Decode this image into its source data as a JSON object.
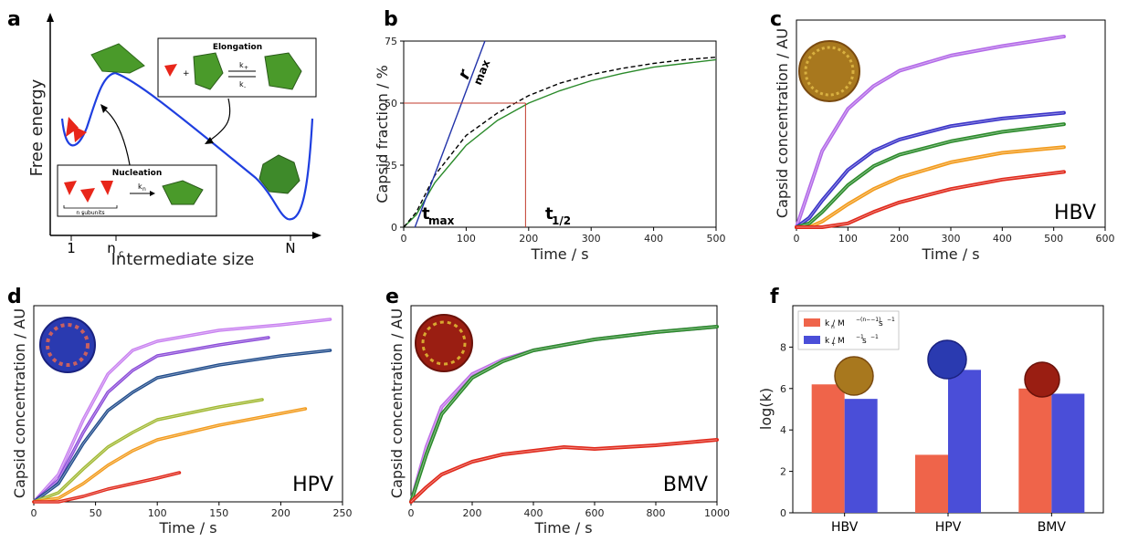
{
  "panels": {
    "a": {
      "letter": "a",
      "ylabel": "Free energy",
      "xlabel": "Intermediate size",
      "xticks": [
        "1",
        "n",
        "N"
      ],
      "nc_sub": "c",
      "elongation": {
        "title": "Elongation",
        "kplus": "k",
        "kplus_sub": "+",
        "kminus": "k",
        "kminus_sub": "-",
        "plus": "+"
      },
      "nucleation": {
        "title": "Nucleation",
        "kn": "k",
        "kn_sub": "n",
        "subunits": "n  subunits",
        "subunits_sub": "c"
      },
      "colors": {
        "curve": "#1f3fe0",
        "subunit": "#e8261a",
        "capsid": "#4a9a2a"
      }
    },
    "b": {
      "letter": "b",
      "ylabel": "Capsid fraction / %",
      "xlabel": "Time / s",
      "xticks": [
        "0",
        "100",
        "200",
        "300",
        "400",
        "500"
      ],
      "yticks": [
        "0",
        "25",
        "50",
        "75"
      ],
      "rmax": "r",
      "rmax_sub": "max",
      "tmax": "t",
      "tmax_sub": "max",
      "thalf": "t",
      "thalf_sub": "1/2"
    },
    "c": {
      "letter": "c",
      "ylabel": "Capsid concentration / AU",
      "xlabel": "Time / s",
      "xticks": [
        "0",
        "100",
        "200",
        "300",
        "400",
        "500",
        "600"
      ],
      "virus": "HBV"
    },
    "d": {
      "letter": "d",
      "ylabel": "Capsid concentration / AU",
      "xlabel": "Time / s",
      "xticks": [
        "0",
        "50",
        "100",
        "150",
        "200",
        "250"
      ],
      "virus": "HPV"
    },
    "e": {
      "letter": "e",
      "ylabel": "Capsid concentration / AU",
      "xlabel": "Time / s",
      "xticks": [
        "0",
        "200",
        "400",
        "600",
        "800",
        "1000"
      ],
      "virus": "BMV"
    },
    "f": {
      "letter": "f",
      "ylabel": "log(k)",
      "yticks": [
        "0",
        "2",
        "4",
        "6",
        "8"
      ],
      "legend_kn": "k  / M",
      "legend_kn_sub": "n",
      "legend_kn_sup": "−(n−−1)",
      "legend_kn_s": " s",
      "legend_kplus": "k  / M",
      "legend_kplus_sub": "+",
      "legend_kplus_sup": "−1",
      "legend_kplus_s": " s",
      "legend_s_sup": "−1"
    }
  },
  "chart_data": [
    {
      "panel": "b",
      "type": "line",
      "xlabel": "Time / s",
      "ylabel": "Capsid fraction / %",
      "xlim": [
        0,
        500
      ],
      "ylim": [
        0,
        75
      ],
      "series": [
        {
          "color": "#2a8a2a",
          "style": "solid",
          "x": [
            0,
            20,
            50,
            100,
            150,
            200,
            250,
            300,
            350,
            400,
            450,
            500
          ],
          "y": [
            0,
            5,
            18,
            33,
            43,
            50,
            55,
            59,
            62,
            64.5,
            66,
            67.5
          ]
        },
        {
          "color": "#000000",
          "style": "dashed",
          "x": [
            0,
            20,
            50,
            100,
            150,
            200,
            250,
            300,
            350,
            400,
            450,
            500
          ],
          "y": [
            0,
            6,
            21,
            37,
            46,
            53,
            58,
            61.5,
            64,
            66,
            67.5,
            68.5
          ]
        },
        {
          "color": "#2233aa",
          "style": "solid",
          "x": [
            18,
            130
          ],
          "y": [
            0,
            75
          ]
        }
      ],
      "annotations": {
        "half_time": 195,
        "half_value": 50,
        "t_max": 22
      }
    },
    {
      "panel": "c",
      "type": "line",
      "xlabel": "Time / s",
      "ylabel": "Capsid concentration / AU",
      "xlim": [
        0,
        600
      ],
      "series": [
        {
          "color": "#b36ae8",
          "x": [
            0,
            25,
            50,
            100,
            150,
            200,
            300,
            400,
            520
          ],
          "y": [
            0,
            0.2,
            0.4,
            0.62,
            0.74,
            0.82,
            0.9,
            0.95,
            1.0
          ]
        },
        {
          "color": "#3a33c8",
          "x": [
            0,
            25,
            50,
            100,
            150,
            200,
            300,
            400,
            520
          ],
          "y": [
            0,
            0.05,
            0.14,
            0.3,
            0.4,
            0.46,
            0.53,
            0.57,
            0.6
          ]
        },
        {
          "color": "#2a8a2a",
          "x": [
            0,
            25,
            50,
            100,
            150,
            200,
            300,
            400,
            520
          ],
          "y": [
            0,
            0.02,
            0.08,
            0.22,
            0.32,
            0.38,
            0.45,
            0.5,
            0.54
          ]
        },
        {
          "color": "#f29a1a",
          "x": [
            0,
            25,
            50,
            100,
            150,
            200,
            300,
            400,
            520
          ],
          "y": [
            0,
            0.0,
            0.03,
            0.12,
            0.2,
            0.26,
            0.34,
            0.39,
            0.42
          ]
        },
        {
          "color": "#e0281a",
          "x": [
            0,
            50,
            100,
            150,
            200,
            300,
            400,
            520
          ],
          "y": [
            0,
            0,
            0.02,
            0.08,
            0.13,
            0.2,
            0.25,
            0.29
          ]
        }
      ]
    },
    {
      "panel": "d",
      "type": "line",
      "xlabel": "Time / s",
      "ylabel": "Capsid concentration / AU",
      "xlim": [
        0,
        250
      ],
      "series": [
        {
          "color": "#c880f0",
          "x": [
            0,
            20,
            40,
            60,
            80,
            100,
            150,
            200,
            240
          ],
          "y": [
            0,
            0.15,
            0.45,
            0.7,
            0.83,
            0.88,
            0.94,
            0.97,
            1.0
          ]
        },
        {
          "color": "#8a4ad8",
          "x": [
            0,
            20,
            40,
            60,
            80,
            100,
            150,
            190
          ],
          "y": [
            0,
            0.12,
            0.38,
            0.6,
            0.72,
            0.8,
            0.86,
            0.9
          ]
        },
        {
          "color": "#1e4a8a",
          "x": [
            0,
            20,
            40,
            60,
            80,
            100,
            150,
            200,
            240
          ],
          "y": [
            0,
            0.1,
            0.32,
            0.5,
            0.6,
            0.68,
            0.75,
            0.8,
            0.83
          ]
        },
        {
          "color": "#a0b830",
          "x": [
            0,
            20,
            40,
            60,
            80,
            100,
            150,
            185
          ],
          "y": [
            0,
            0.05,
            0.18,
            0.3,
            0.38,
            0.45,
            0.52,
            0.56
          ]
        },
        {
          "color": "#f29a1a",
          "x": [
            0,
            20,
            40,
            60,
            80,
            100,
            150,
            220
          ],
          "y": [
            0,
            0.02,
            0.1,
            0.2,
            0.28,
            0.34,
            0.42,
            0.51
          ]
        },
        {
          "color": "#e0281a",
          "x": [
            0,
            20,
            40,
            60,
            80,
            100,
            118
          ],
          "y": [
            0,
            0,
            0.03,
            0.07,
            0.1,
            0.13,
            0.16
          ]
        }
      ]
    },
    {
      "panel": "e",
      "type": "line",
      "xlabel": "Time / s",
      "ylabel": "Capsid concentration / AU",
      "xlim": [
        0,
        1000
      ],
      "series": [
        {
          "color": "#c070e8",
          "x": [
            0,
            50,
            100,
            200,
            300,
            400,
            600,
            800,
            1000
          ],
          "y": [
            0,
            0.3,
            0.52,
            0.7,
            0.78,
            0.83,
            0.89,
            0.93,
            0.96
          ]
        },
        {
          "color": "#2a8a2a",
          "x": [
            0,
            50,
            100,
            200,
            300,
            400,
            600,
            800,
            1000
          ],
          "y": [
            0,
            0.26,
            0.48,
            0.68,
            0.77,
            0.83,
            0.89,
            0.93,
            0.96
          ]
        },
        {
          "color": "#e0281a",
          "x": [
            0,
            50,
            100,
            200,
            300,
            400,
            500,
            600,
            700,
            800,
            1000
          ],
          "y": [
            0,
            0.08,
            0.15,
            0.22,
            0.26,
            0.28,
            0.3,
            0.29,
            0.3,
            0.31,
            0.34
          ]
        }
      ]
    },
    {
      "panel": "f",
      "type": "bar",
      "categories": [
        "HBV",
        "HPV",
        "BMV"
      ],
      "ylabel": "log(k)",
      "ylim": [
        0,
        10
      ],
      "series": [
        {
          "name": "k_n / M^-(n_c-1) s^-1",
          "color": "#ef644a",
          "values": [
            6.2,
            2.8,
            6.0
          ]
        },
        {
          "name": "k_+ / M^-1 s^-1",
          "color": "#4a4ed8",
          "values": [
            5.5,
            6.9,
            5.75
          ]
        }
      ]
    }
  ]
}
